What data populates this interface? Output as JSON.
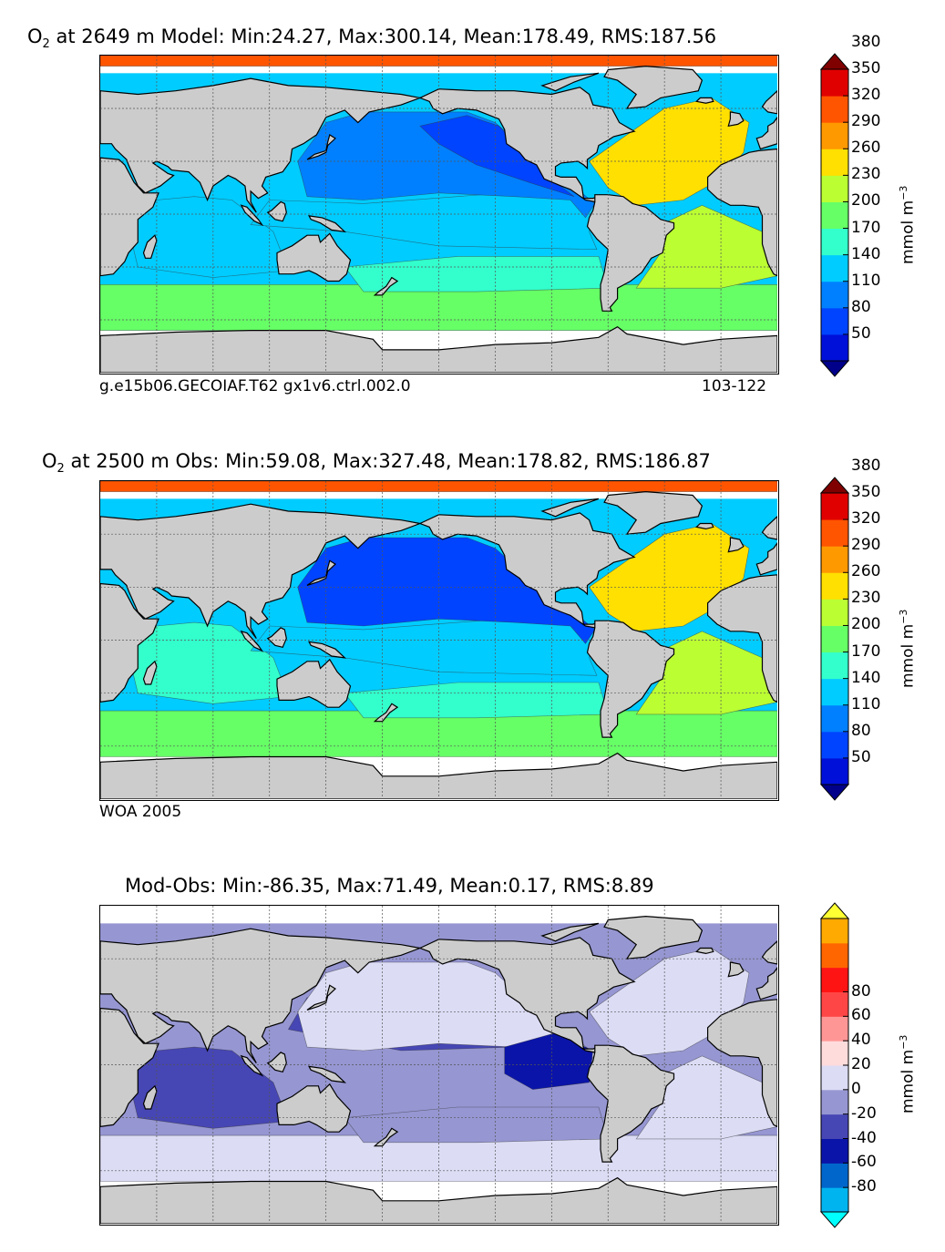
{
  "chart_data": [
    {
      "type": "heatmap",
      "title_species": "O",
      "title_sub": "2",
      "title_rest": " at 2649 m Model: Min:24.27, Max:300.14, Mean:178.49, RMS:187.56",
      "stats": {
        "min": 24.27,
        "max": 300.14,
        "mean": 178.49,
        "rms": 187.56
      },
      "depth": "2649 m",
      "caption_left": "g.e15b06.GECOIAF.T62 gx1v6.ctrl.002.0",
      "caption_right": "103-122",
      "colorbar": {
        "levels": [
          "50",
          "80",
          "110",
          "140",
          "170",
          "200",
          "230",
          "260",
          "290",
          "320",
          "350",
          "380"
        ],
        "colors": [
          "#00008a",
          "#0010d8",
          "#0044ff",
          "#0080ff",
          "#00ccff",
          "#33ffcc",
          "#66ff66",
          "#bbff33",
          "#ffe000",
          "#ff9900",
          "#ff5500",
          "#e00000",
          "#800000"
        ],
        "units_main": "mmol m",
        "units_sup": "−3"
      },
      "regions": {
        "north_pacific": 110,
        "northeast_pacific": 80,
        "equatorial_pacific": 140,
        "south_pacific": 170,
        "indian_ocean": 140,
        "north_atlantic": 260,
        "south_atlantic": 230,
        "southern_ocean": 200,
        "arctic": 320
      }
    },
    {
      "type": "heatmap",
      "title_species": "O",
      "title_sub": "2",
      "title_rest": " at 2500 m Obs: Min:59.08, Max:327.48, Mean:178.82, RMS:186.87",
      "stats": {
        "min": 59.08,
        "max": 327.48,
        "mean": 178.82,
        "rms": 186.87
      },
      "depth": "2500 m",
      "caption_left": "WOA 2005",
      "caption_right": "",
      "colorbar": {
        "levels": [
          "50",
          "80",
          "110",
          "140",
          "170",
          "200",
          "230",
          "260",
          "290",
          "320",
          "350",
          "380"
        ],
        "colors": [
          "#00008a",
          "#0010d8",
          "#0044ff",
          "#0080ff",
          "#00ccff",
          "#33ffcc",
          "#66ff66",
          "#bbff33",
          "#ffe000",
          "#ff9900",
          "#ff5500",
          "#e00000",
          "#800000"
        ],
        "units_main": "mmol m",
        "units_sup": "−3"
      },
      "regions": {
        "north_pacific": 80,
        "equatorial_pacific": 140,
        "south_pacific": 170,
        "indian_ocean": 170,
        "north_atlantic": 260,
        "south_atlantic": 230,
        "southern_ocean": 200,
        "arctic": 320
      }
    },
    {
      "type": "heatmap",
      "title_species": "",
      "title_sub": "",
      "title_rest": "Mod-Obs: Min:-86.35, Max:71.49, Mean:0.17, RMS:8.89",
      "stats": {
        "min": -86.35,
        "max": 71.49,
        "mean": 0.17,
        "rms": 8.89
      },
      "caption_left": "",
      "caption_right": "",
      "colorbar": {
        "levels": [
          "-80",
          "-60",
          "-40",
          "-20",
          "0",
          "20",
          "40",
          "60",
          "80"
        ],
        "colors": [
          "#00ffff",
          "#00b4f0",
          "#0066cc",
          "#0a14a8",
          "#4646b4",
          "#9696d2",
          "#dcdcf5",
          "#ffdcdc",
          "#ff9696",
          "#ff4646",
          "#ff1414",
          "#ff6600",
          "#ffaa00",
          "#ffff33"
        ],
        "units_main": "mmol m",
        "units_sup": "−3"
      },
      "regions": {
        "north_pacific": 20,
        "central_pacific": -10,
        "east_pacific": -30,
        "south_pacific": 10,
        "indian_ocean": -10,
        "north_atlantic": 20,
        "south_atlantic": 20,
        "southern_ocean": 20
      }
    }
  ]
}
